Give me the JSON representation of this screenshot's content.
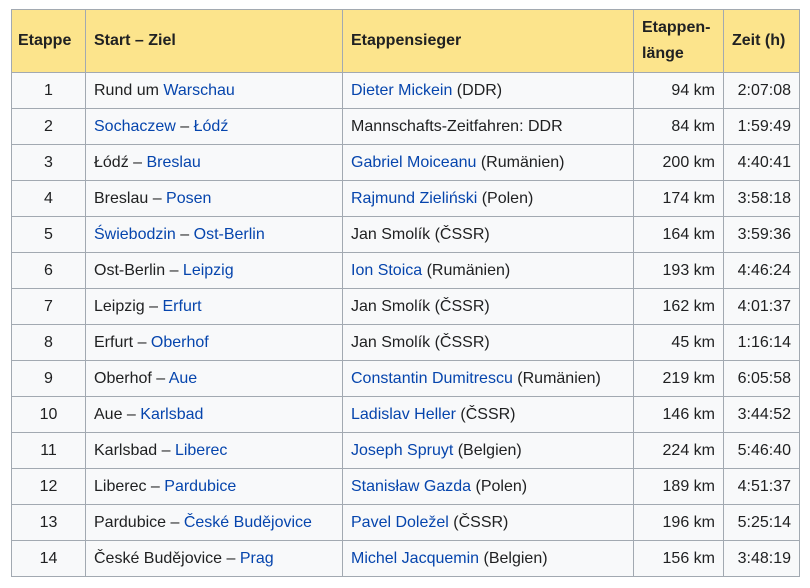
{
  "headers": {
    "stage": "Etappe",
    "route": "Start – Ziel",
    "winner": "Etappensieger",
    "length_line1": "Etappen-",
    "length_line2": "länge",
    "time": "Zeit (h)"
  },
  "colors": {
    "header_bg": "#fce48c",
    "link": "#0645ad",
    "border": "#a2a9b1",
    "row_bg": "#f8f9fa"
  },
  "rows": [
    {
      "stage": "1",
      "route": [
        {
          "t": "Rund um ",
          "link": false
        },
        {
          "t": "Warschau",
          "link": true
        }
      ],
      "winner": [
        {
          "t": "Dieter Mickein",
          "link": true
        },
        {
          "t": " (DDR)",
          "link": false
        }
      ],
      "length": "94 km",
      "time": "2:07:08"
    },
    {
      "stage": "2",
      "route": [
        {
          "t": "Sochaczew",
          "link": true
        },
        {
          "t": " – ",
          "link": false
        },
        {
          "t": "Łódź",
          "link": true
        }
      ],
      "winner": [
        {
          "t": "Mannschafts-Zeitfahren: DDR",
          "link": false
        }
      ],
      "length": "84 km",
      "time": "1:59:49"
    },
    {
      "stage": "3",
      "route": [
        {
          "t": "Łódź – ",
          "link": false
        },
        {
          "t": "Breslau",
          "link": true
        }
      ],
      "winner": [
        {
          "t": "Gabriel Moiceanu",
          "link": true
        },
        {
          "t": " (Rumänien)",
          "link": false
        }
      ],
      "length": "200 km",
      "time": "4:40:41"
    },
    {
      "stage": "4",
      "route": [
        {
          "t": "Breslau – ",
          "link": false
        },
        {
          "t": "Posen",
          "link": true
        }
      ],
      "winner": [
        {
          "t": "Rajmund Zieliński",
          "link": true
        },
        {
          "t": " (Polen)",
          "link": false
        }
      ],
      "length": "174 km",
      "time": "3:58:18"
    },
    {
      "stage": "5",
      "route": [
        {
          "t": "Świebodzin",
          "link": true
        },
        {
          "t": " – ",
          "link": false
        },
        {
          "t": "Ost-Berlin",
          "link": true
        }
      ],
      "winner": [
        {
          "t": "Jan Smolík (ČSSR)",
          "link": false
        }
      ],
      "length": "164 km",
      "time": "3:59:36"
    },
    {
      "stage": "6",
      "route": [
        {
          "t": "Ost-Berlin – ",
          "link": false
        },
        {
          "t": "Leipzig",
          "link": true
        }
      ],
      "winner": [
        {
          "t": "Ion Stoica",
          "link": true
        },
        {
          "t": " (Rumänien)",
          "link": false
        }
      ],
      "length": "193 km",
      "time": "4:46:24"
    },
    {
      "stage": "7",
      "route": [
        {
          "t": "Leipzig – ",
          "link": false
        },
        {
          "t": "Erfurt",
          "link": true
        }
      ],
      "winner": [
        {
          "t": "Jan Smolík (ČSSR)",
          "link": false
        }
      ],
      "length": "162 km",
      "time": "4:01:37"
    },
    {
      "stage": "8",
      "route": [
        {
          "t": "Erfurt – ",
          "link": false
        },
        {
          "t": "Oberhof",
          "link": true
        }
      ],
      "winner": [
        {
          "t": "Jan Smolík (ČSSR)",
          "link": false
        }
      ],
      "length": "45 km",
      "time": "1:16:14"
    },
    {
      "stage": "9",
      "route": [
        {
          "t": "Oberhof – ",
          "link": false
        },
        {
          "t": "Aue",
          "link": true
        }
      ],
      "winner": [
        {
          "t": "Constantin Dumitrescu",
          "link": true
        },
        {
          "t": " (Rumänien)",
          "link": false
        }
      ],
      "length": "219 km",
      "time": "6:05:58"
    },
    {
      "stage": "10",
      "route": [
        {
          "t": "Aue – ",
          "link": false
        },
        {
          "t": "Karlsbad",
          "link": true
        }
      ],
      "winner": [
        {
          "t": "Ladislav Heller",
          "link": true
        },
        {
          "t": " (ČSSR)",
          "link": false
        }
      ],
      "length": "146 km",
      "time": "3:44:52"
    },
    {
      "stage": "11",
      "route": [
        {
          "t": "Karlsbad – ",
          "link": false
        },
        {
          "t": "Liberec",
          "link": true
        }
      ],
      "winner": [
        {
          "t": "Joseph Spruyt",
          "link": true
        },
        {
          "t": " (Belgien)",
          "link": false
        }
      ],
      "length": "224 km",
      "time": "5:46:40"
    },
    {
      "stage": "12",
      "route": [
        {
          "t": "Liberec – ",
          "link": false
        },
        {
          "t": "Pardubice",
          "link": true
        }
      ],
      "winner": [
        {
          "t": "Stanisław Gazda",
          "link": true
        },
        {
          "t": " (Polen)",
          "link": false
        }
      ],
      "length": "189 km",
      "time": "4:51:37"
    },
    {
      "stage": "13",
      "route": [
        {
          "t": "Pardubice – ",
          "link": false
        },
        {
          "t": "České Budějovice",
          "link": true
        }
      ],
      "winner": [
        {
          "t": "Pavel Doležel",
          "link": true
        },
        {
          "t": " (ČSSR)",
          "link": false
        }
      ],
      "length": "196 km",
      "time": "5:25:14"
    },
    {
      "stage": "14",
      "route": [
        {
          "t": "České Budějovice – ",
          "link": false
        },
        {
          "t": "Prag",
          "link": true
        }
      ],
      "winner": [
        {
          "t": "Michel Jacquemin",
          "link": true
        },
        {
          "t": " (Belgien)",
          "link": false
        }
      ],
      "length": "156 km",
      "time": "3:48:19"
    }
  ]
}
